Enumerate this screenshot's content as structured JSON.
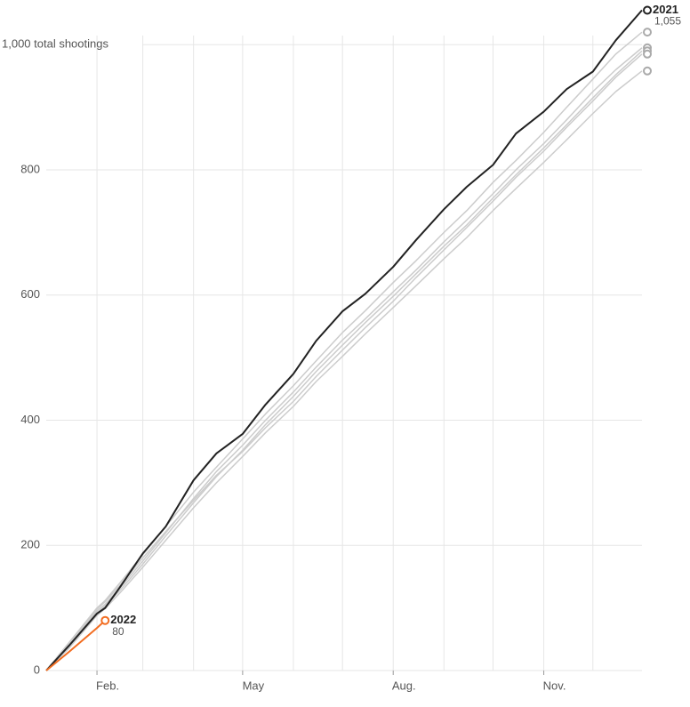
{
  "chart_data": {
    "type": "line",
    "x": [
      1,
      15,
      32,
      37,
      46,
      60,
      74,
      91,
      105,
      121,
      135,
      152,
      166,
      182,
      196,
      213,
      227,
      244,
      258,
      274,
      288,
      305,
      319,
      335,
      349,
      365
    ],
    "xlim": [
      1,
      365
    ],
    "xticks": [
      {
        "value": 32,
        "label": "Feb."
      },
      {
        "value": 121,
        "label": "May"
      },
      {
        "value": 213,
        "label": "Aug."
      },
      {
        "value": 305,
        "label": "Nov."
      }
    ],
    "xgrid": [
      32,
      60,
      91,
      121,
      152,
      182,
      213,
      244,
      274,
      305,
      335
    ],
    "ylim": [
      0,
      1060
    ],
    "yticks": [
      0,
      200,
      400,
      600,
      800,
      {
        "value": 1000,
        "label": "1,000 total shootings"
      }
    ],
    "grid": true,
    "series": [
      {
        "color": "#cccccc",
        "values": [
          0,
          45,
          100,
          112,
          140,
          185,
          230,
          285,
          325,
          370,
          410,
          455,
          495,
          540,
          575,
          620,
          655,
          700,
          735,
          780,
          815,
          860,
          900,
          945,
          985,
          1020
        ]
      },
      {
        "color": "#cccccc",
        "values": [
          0,
          40,
          95,
          106,
          132,
          175,
          220,
          275,
          318,
          360,
          400,
          445,
          485,
          528,
          562,
          605,
          640,
          685,
          720,
          762,
          800,
          842,
          880,
          925,
          960,
          995
        ]
      },
      {
        "color": "#cccccc",
        "values": [
          0,
          38,
          92,
          103,
          128,
          170,
          215,
          268,
          310,
          352,
          393,
          438,
          478,
          520,
          556,
          598,
          634,
          678,
          712,
          755,
          792,
          835,
          872,
          915,
          952,
          990
        ]
      },
      {
        "color": "#cccccc",
        "values": [
          0,
          42,
          98,
          110,
          136,
          180,
          222,
          272,
          312,
          350,
          388,
          430,
          470,
          512,
          548,
          590,
          628,
          672,
          708,
          750,
          788,
          830,
          868,
          910,
          948,
          985
        ]
      },
      {
        "color": "#cccccc",
        "values": [
          0,
          36,
          88,
          99,
          124,
          165,
          208,
          260,
          300,
          342,
          380,
          422,
          462,
          502,
          538,
          580,
          615,
          658,
          692,
          735,
          770,
          812,
          848,
          890,
          925,
          958
        ]
      },
      {
        "name": "2021",
        "color": "#222222",
        "values": [
          0,
          40,
          91,
          100,
          133,
          187,
          230,
          304,
          347,
          378,
          425,
          474,
          527,
          574,
          602,
          645,
          688,
          737,
          773,
          808,
          858,
          893,
          929,
          957,
          1007,
          1055
        ],
        "value_labels": [
          null,
          null,
          null,
          null,
          null,
          null,
          null,
          null,
          null,
          null,
          null,
          null,
          null,
          null,
          null,
          null,
          null,
          null,
          null,
          null,
          null,
          null,
          null,
          null,
          null,
          "1,055"
        ]
      },
      {
        "name": "2022",
        "color": "#f26d21",
        "values": [
          0,
          30,
          68,
          80,
          null,
          null,
          null,
          null,
          null,
          null,
          null,
          null,
          null,
          null,
          null,
          null,
          null,
          null,
          null,
          null,
          null,
          null,
          null,
          null,
          null,
          null
        ]
      }
    ]
  }
}
